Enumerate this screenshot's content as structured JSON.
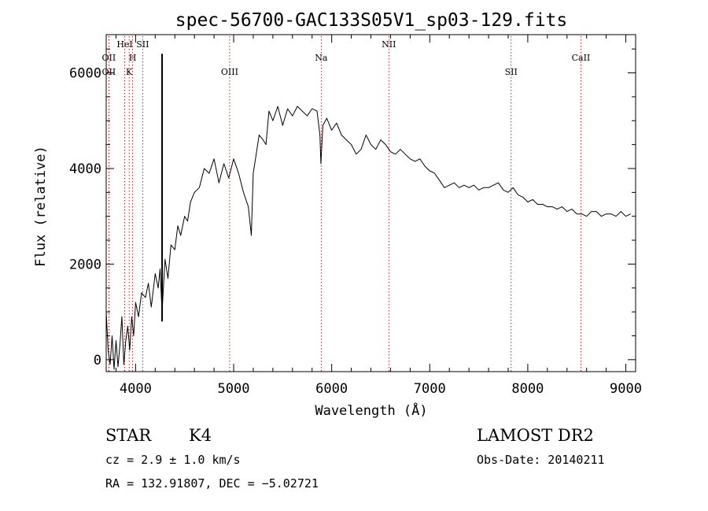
{
  "chart_data": {
    "type": "line",
    "title": "spec-56700-GAC133S05V1_sp03-129.fits",
    "xlabel": "Wavelength (Å)",
    "ylabel": "Flux (relative)",
    "xlim": [
      3700,
      9100
    ],
    "ylim": [
      -250,
      6800
    ],
    "xticks": [
      4000,
      5000,
      6000,
      7000,
      8000,
      9000
    ],
    "yticks": [
      0,
      2000,
      4000,
      6000
    ],
    "grid": false,
    "line_color": "#000000",
    "marker_line_color": "#8b0000",
    "series": [
      {
        "x": [
          3700,
          3720,
          3740,
          3760,
          3780,
          3800,
          3820,
          3840,
          3860,
          3880,
          3900,
          3920,
          3940,
          3960,
          3980,
          4000,
          4030,
          4060,
          4100,
          4130,
          4160,
          4200,
          4230,
          4250,
          4270,
          4300,
          4330,
          4360,
          4400,
          4430,
          4460,
          4500,
          4530,
          4560,
          4600,
          4650,
          4700,
          4750,
          4800,
          4850,
          4900,
          4950,
          5000,
          5050,
          5100,
          5150,
          5180,
          5200,
          5230,
          5260,
          5300,
          5330,
          5360,
          5400,
          5450,
          5500,
          5550,
          5600,
          5650,
          5700,
          5750,
          5800,
          5850,
          5880,
          5890,
          5910,
          5950,
          6000,
          6050,
          6100,
          6150,
          6200,
          6250,
          6300,
          6350,
          6400,
          6450,
          6500,
          6550,
          6600,
          6650,
          6700,
          6750,
          6800,
          6850,
          6900,
          6950,
          7000,
          7050,
          7100,
          7150,
          7200,
          7250,
          7300,
          7350,
          7400,
          7450,
          7500,
          7550,
          7600,
          7650,
          7700,
          7750,
          7800,
          7850,
          7900,
          7950,
          8000,
          8050,
          8100,
          8150,
          8200,
          8250,
          8300,
          8350,
          8400,
          8450,
          8500,
          8550,
          8600,
          8650,
          8700,
          8750,
          8800,
          8850,
          8900,
          8950,
          9000,
          9050
        ],
        "y": [
          1000,
          200,
          -100,
          500,
          -200,
          400,
          -150,
          300,
          900,
          -100,
          400,
          700,
          200,
          900,
          500,
          1200,
          900,
          1400,
          1300,
          1600,
          1100,
          1800,
          1500,
          1900,
          1000,
          2100,
          1700,
          2400,
          2300,
          2800,
          2600,
          3000,
          2900,
          3300,
          3500,
          3600,
          4000,
          3900,
          4200,
          3700,
          4100,
          3800,
          4200,
          3900,
          3500,
          3200,
          2600,
          3900,
          4300,
          4700,
          4600,
          4500,
          5200,
          5000,
          5300,
          4900,
          5250,
          5100,
          5300,
          5200,
          5100,
          5250,
          5200,
          4700,
          4100,
          4900,
          5050,
          4800,
          4950,
          4700,
          4600,
          4500,
          4300,
          4400,
          4700,
          4500,
          4400,
          4600,
          4500,
          4350,
          4300,
          4400,
          4300,
          4200,
          4150,
          4200,
          4050,
          3950,
          3900,
          3750,
          3600,
          3650,
          3700,
          3600,
          3650,
          3600,
          3650,
          3550,
          3600,
          3600,
          3650,
          3700,
          3550,
          3500,
          3600,
          3450,
          3400,
          3300,
          3350,
          3250,
          3250,
          3200,
          3200,
          3150,
          3200,
          3100,
          3150,
          3050,
          3050,
          3000,
          3100,
          3100,
          3000,
          3050,
          3050,
          3000,
          3100,
          3000,
          3050
        ]
      }
    ],
    "spike": {
      "x": 4270,
      "y_min": 800,
      "y_max": 6400
    },
    "line_markers": [
      {
        "label": "OII",
        "x": 3727,
        "row": 1
      },
      {
        "label": "OII",
        "x": 3727,
        "row": 2
      },
      {
        "label": "HeI",
        "x": 3889,
        "row": 0
      },
      {
        "label": "H",
        "x": 3969,
        "row": 1
      },
      {
        "label": "K",
        "x": 3934,
        "row": 2
      },
      {
        "label": "SII",
        "x": 4072,
        "row": 0
      },
      {
        "label": "OIII",
        "x": 4959,
        "row": 2
      },
      {
        "label": "Na",
        "x": 5893,
        "row": 1
      },
      {
        "label": "NII",
        "x": 6583,
        "row": 0
      },
      {
        "label": "SII",
        "x": 7830,
        "row": 2
      },
      {
        "label": "CaII",
        "x": 8542,
        "row": 1
      }
    ]
  },
  "info": {
    "object_type": "STAR",
    "subclass": "K4",
    "cz": "cz = 2.9 ± 1.0 km/s",
    "coords": "RA = 132.91807, DEC =  −5.02721",
    "survey": "LAMOST DR2",
    "obs_date": "Obs-Date: 20140211"
  }
}
